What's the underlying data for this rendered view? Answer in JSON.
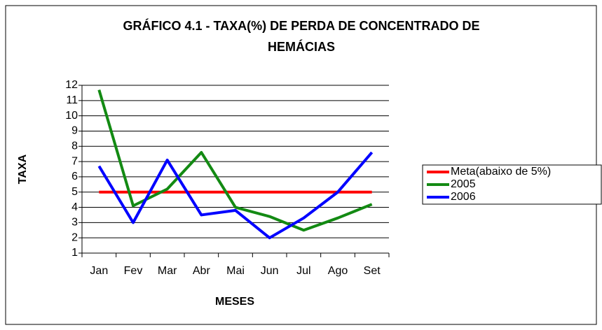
{
  "chart_data": {
    "type": "line",
    "title": [
      "GRÁFICO 4.1 - TAXA(%) DE PERDA DE CONCENTRADO DE",
      "HEMÁCIAS"
    ],
    "x_label": "MESES",
    "y_label": "TAXA",
    "categories": [
      "Jan",
      "Fev",
      "Mar",
      "Abr",
      "Mai",
      "Jun",
      "Jul",
      "Ago",
      "Set"
    ],
    "series": [
      {
        "name": "Meta(abaixo de 5%)",
        "color": "#ff0000",
        "values": [
          5,
          5,
          5,
          5,
          5,
          5,
          5,
          5,
          5
        ]
      },
      {
        "name": "2005",
        "color": "#138a13",
        "values": [
          11.7,
          4.1,
          5.2,
          7.6,
          4.0,
          3.4,
          2.5,
          3.3,
          4.2
        ]
      },
      {
        "name": "2006",
        "color": "#0000ff",
        "values": [
          6.7,
          3.0,
          7.1,
          3.5,
          3.8,
          2.0,
          3.3,
          5.0,
          7.6
        ]
      }
    ],
    "ylim": [
      1,
      12
    ],
    "yticks": [
      1,
      2,
      3,
      4,
      5,
      6,
      7,
      8,
      9,
      10,
      11,
      12
    ],
    "grid": true,
    "legend": "right"
  }
}
